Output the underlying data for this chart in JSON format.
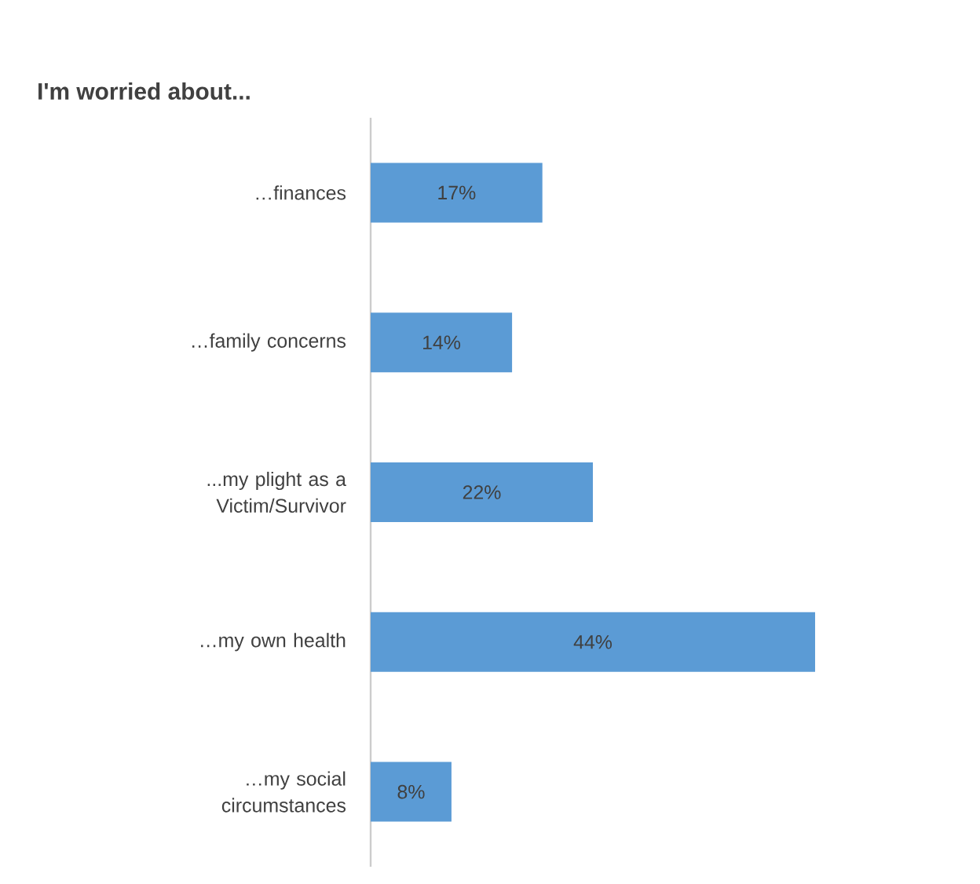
{
  "chart_data": {
    "type": "bar",
    "orientation": "horizontal",
    "title": "I'm worried about...",
    "categories": [
      "…finances",
      "…family concerns",
      "...my plight as a Victim/Survivor",
      "…my own health",
      "…my social circumstances"
    ],
    "values": [
      17,
      14,
      22,
      44,
      8
    ],
    "value_labels": [
      "17%",
      "14%",
      "22%",
      "44%",
      "8%"
    ],
    "color": "#5b9bd5"
  }
}
